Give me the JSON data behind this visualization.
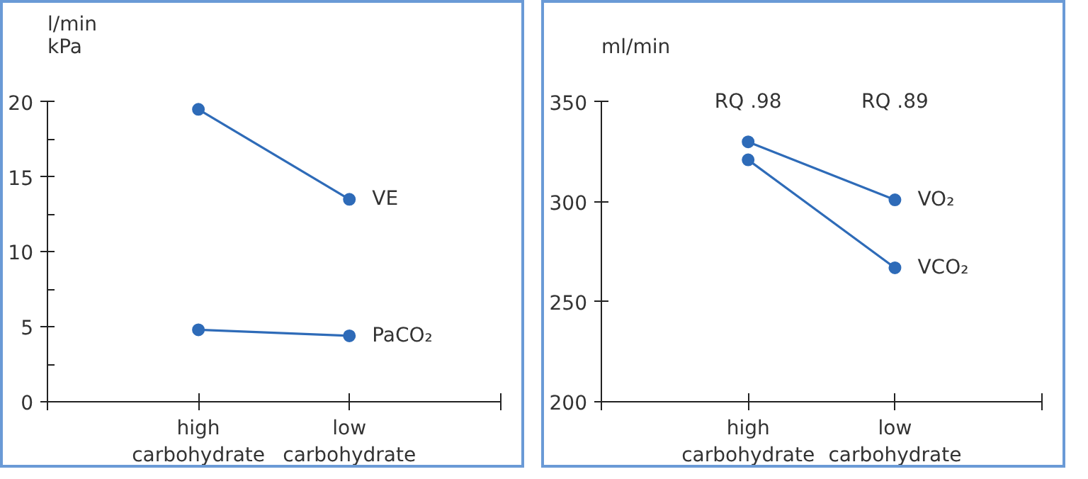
{
  "chart_data": [
    {
      "type": "line",
      "ylabel": "l/min\nkPa",
      "categories": [
        "high\ncarbohydrate",
        "low\ncarbohydrate"
      ],
      "ylim": [
        0,
        20
      ],
      "yticks": [
        0,
        {
          "value": 2.5,
          "label": null
        },
        5,
        {
          "value": 7.5,
          "label": null
        },
        10,
        {
          "value": 12.5,
          "label": null
        },
        15,
        {
          "value": 17.5,
          "label": null
        },
        20
      ],
      "marker": "circle",
      "series": [
        {
          "name": "VE",
          "color": "#2e6bb8",
          "values": [
            19.5,
            13.5
          ]
        },
        {
          "name": "PaCO₂",
          "color": "#2e6bb8",
          "values": [
            4.8,
            4.4
          ]
        }
      ]
    },
    {
      "type": "line",
      "ylabel": "ml/min",
      "categories": [
        "high\ncarbohydrate",
        "low\ncarbohydrate"
      ],
      "ylim": [
        200,
        350
      ],
      "yticks": [
        200,
        250,
        300,
        350
      ],
      "marker": "circle",
      "annotations": [
        "RQ .98",
        "RQ .89"
      ],
      "series": [
        {
          "name": "VO₂",
          "color": "#2e6bb8",
          "values": [
            330,
            301
          ]
        },
        {
          "name": "VCO₂",
          "color": "#2e6bb8",
          "values": [
            321,
            267
          ]
        }
      ]
    }
  ]
}
